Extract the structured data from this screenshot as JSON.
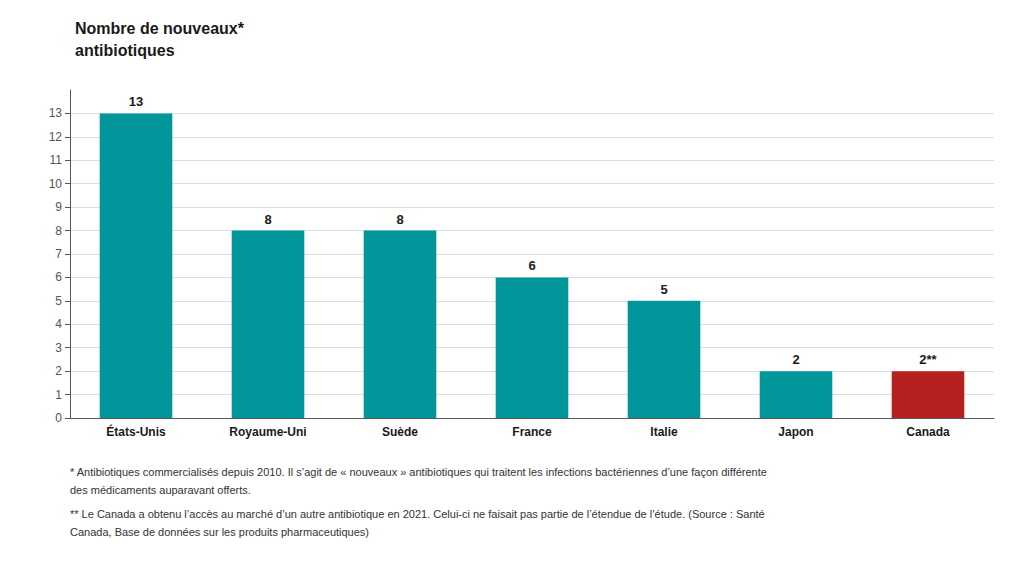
{
  "chart_data": {
    "type": "bar",
    "title": "Nombre de nouveaux*\nantibiotiques",
    "categories": [
      "États-Unis",
      "Royaume-Uni",
      "Suède",
      "France",
      "Italie",
      "Japon",
      "Canada"
    ],
    "values": [
      13,
      8,
      8,
      6,
      5,
      2,
      2
    ],
    "value_labels": [
      "13",
      "8",
      "8",
      "6",
      "5",
      "2",
      "2**"
    ],
    "data_labels": true,
    "colors": [
      "#00969a",
      "#00969a",
      "#00969a",
      "#00969a",
      "#00969a",
      "#00969a",
      "#b5211e"
    ],
    "ylim": [
      0,
      14
    ],
    "yticks": [
      0,
      1,
      2,
      3,
      4,
      5,
      6,
      7,
      8,
      9,
      10,
      11,
      12,
      13
    ],
    "grid": true,
    "annotations": [
      "* Antibiotiques commercialisés depuis 2010. Il s’agit de « nouveaux » antibiotiques qui traitent les infections bactériennes d’une façon différente",
      "des médicaments auparavant offerts.",
      "** Le Canada a obtenu l’accès au marché d’un autre antibiotique en 2021. Celui-ci ne faisait pas partie de l’étendue de l’étude. (Source : Santé",
      "Canada, Base de données sur les produits pharmaceutiques)"
    ]
  }
}
